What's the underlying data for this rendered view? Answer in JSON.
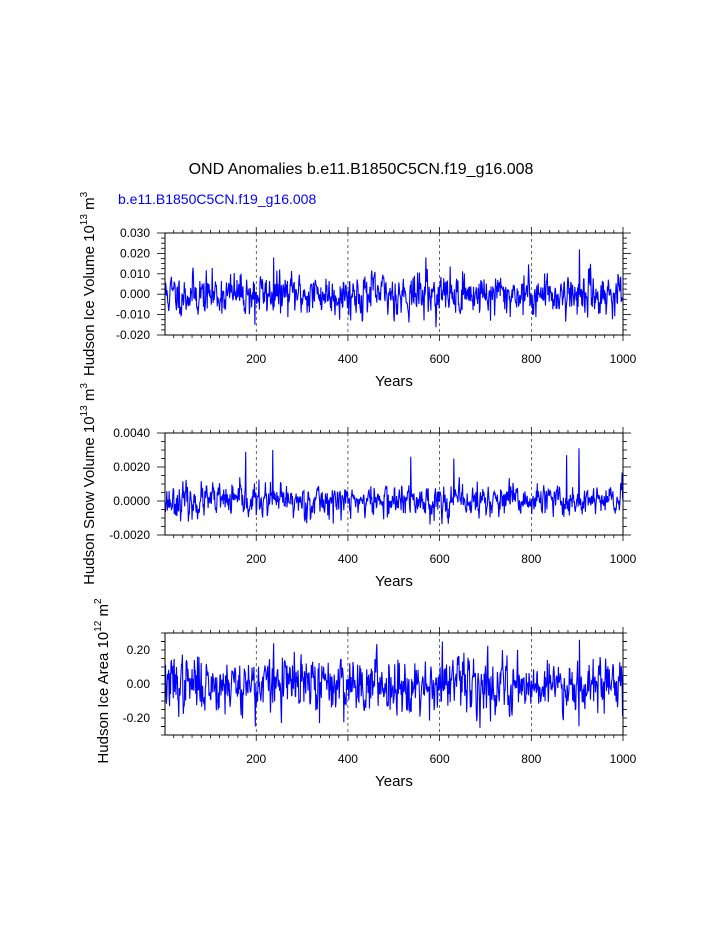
{
  "title": "OND Anomalies b.e11.B1850C5CN.f19_g16.008",
  "subtitle": "b.e11.B1850C5CN.f19_g16.008",
  "colors": {
    "series": "#0000ff",
    "subtitle": "#0000ff",
    "axis": "#000000",
    "grid": "#000000"
  },
  "chart_data": [
    {
      "type": "line",
      "ylabel_main": "Hudson Ice Volume 10",
      "ylabel_exp": "13",
      "ylabel_unit": " m",
      "ylabel_unit_exp": "3",
      "xlabel": "Years",
      "xlim": [
        1,
        1000
      ],
      "ylim": [
        -0.02,
        0.03
      ],
      "xticks": [
        200,
        400,
        600,
        800,
        1000
      ],
      "xtick_labels": [
        "200",
        "400",
        "600",
        "800",
        "1000"
      ],
      "yticks": [
        -0.02,
        -0.01,
        0.0,
        0.01,
        0.02,
        0.03
      ],
      "ytick_labels": [
        "-0.020",
        "-0.010",
        "0.000",
        "0.010",
        "0.020",
        "0.030"
      ],
      "minor_per_major": 4,
      "grid_x": [
        200,
        400,
        600,
        800
      ],
      "series": [
        {
          "name": "b.e11.B1850C5CN.f19_g16.008",
          "n": 1000,
          "std": 0.0048,
          "seed": 11,
          "peaks": [
            [
              905,
              0.022
            ],
            [
              570,
              0.018
            ],
            [
              238,
              0.018
            ],
            [
              197,
              -0.015
            ],
            [
              711,
              -0.013
            ]
          ]
        }
      ]
    },
    {
      "type": "line",
      "ylabel_main": "Hudson Snow Volume 10",
      "ylabel_exp": "13",
      "ylabel_unit": " m",
      "ylabel_unit_exp": "3",
      "xlabel": "Years",
      "xlim": [
        1,
        1000
      ],
      "ylim": [
        -0.002,
        0.004
      ],
      "xticks": [
        200,
        400,
        600,
        800,
        1000
      ],
      "xtick_labels": [
        "200",
        "400",
        "600",
        "800",
        "1000"
      ],
      "yticks": [
        -0.002,
        0.0,
        0.002,
        0.004
      ],
      "ytick_labels": [
        "-0.0020",
        "0.0000",
        "0.0020",
        "0.0040"
      ],
      "minor_per_major": 4,
      "grid_x": [
        200,
        400,
        600,
        800
      ],
      "series": [
        {
          "name": "b.e11.B1850C5CN.f19_g16.008",
          "n": 1000,
          "std": 0.00045,
          "seed": 23,
          "peaks": [
            [
              904,
              0.0031
            ],
            [
              177,
              0.0029
            ],
            [
              236,
              0.003
            ],
            [
              537,
              0.0026
            ],
            [
              631,
              0.0025
            ],
            [
              877,
              0.0027
            ],
            [
              60,
              -0.0011
            ],
            [
              305,
              -0.001
            ]
          ]
        }
      ]
    },
    {
      "type": "line",
      "ylabel_main": "Hudson Ice Area 10",
      "ylabel_exp": "12",
      "ylabel_unit": " m",
      "ylabel_unit_exp": "2",
      "xlabel": "Years",
      "xlim": [
        1,
        1000
      ],
      "ylim": [
        -0.3,
        0.3
      ],
      "xticks": [
        200,
        400,
        600,
        800,
        1000
      ],
      "xtick_labels": [
        "200",
        "400",
        "600",
        "800",
        "1000"
      ],
      "yticks": [
        -0.2,
        0.0,
        0.2
      ],
      "ytick_labels": [
        "-0.20",
        "0.00",
        "0.20"
      ],
      "minor_per_major": 4,
      "grid_x": [
        200,
        400,
        600,
        800
      ],
      "series": [
        {
          "name": "b.e11.B1850C5CN.f19_g16.008",
          "n": 1000,
          "std": 0.075,
          "seed": 37,
          "peaks": [
            [
              606,
              0.25
            ],
            [
              238,
              0.24
            ],
            [
              905,
              0.26
            ],
            [
              198,
              -0.25
            ],
            [
              711,
              -0.22
            ],
            [
              338,
              -0.23
            ]
          ]
        }
      ]
    }
  ]
}
